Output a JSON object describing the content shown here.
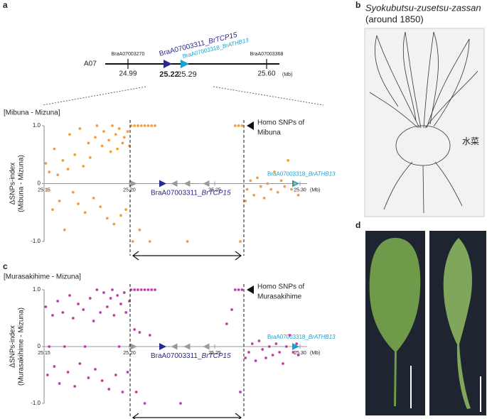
{
  "panels": {
    "a": "a",
    "b": "b",
    "c": "c",
    "d": "d"
  },
  "gene_map": {
    "chromosome": "A07",
    "unit": "(Mb)",
    "markers": [
      {
        "name": "BraA07003270",
        "position": "24.99"
      },
      {
        "name": "BraA07003368",
        "position": "25.60"
      }
    ],
    "genes": [
      {
        "id": "BraA07003311_",
        "name": "BrTCP15",
        "position": "25.22"
      },
      {
        "id": "BraA07003318_",
        "name": "BrATHB13",
        "position": "25.29"
      }
    ]
  },
  "illustration": {
    "title": "Syokubutsu-zusetsu-zassan",
    "subtitle": "(around 1850)"
  },
  "chart_data": [
    {
      "type": "scatter",
      "title": "[Mibuna - Mizuna]",
      "y_label": [
        "ΔSNPs-index",
        "(Mibuna - Mizuna)"
      ],
      "annotation": [
        "Homo SNPs of",
        "Mibuna"
      ],
      "x_unit": "(Mb)",
      "genes": [
        {
          "id": "BraA07003311_",
          "name": "BrTCP15"
        },
        {
          "id": "BraA07003318_",
          "name": "BrATHB13"
        }
      ],
      "color": "#f0a040",
      "xlim": [
        25.15,
        25.3
      ],
      "ylim": [
        -1,
        1
      ],
      "xticks": [
        25.15,
        {
          "value": 25.2,
          "label": "25.20"
        },
        25.25,
        {
          "value": 25.3,
          "label": "25.30"
        }
      ],
      "yticks": [
        {
          "value": 1,
          "label": "1.0"
        },
        0,
        {
          "value": -1,
          "label": "-1.0"
        }
      ],
      "x": [
        25.151,
        25.152,
        25.153,
        25.155,
        25.156,
        25.158,
        25.159,
        25.161,
        25.162,
        25.164,
        25.165,
        25.167,
        25.168,
        25.17,
        25.171,
        25.173,
        25.174,
        25.176,
        25.177,
        25.179,
        25.18,
        25.181,
        25.183,
        25.184,
        25.185,
        25.187,
        25.188,
        25.189,
        25.19,
        25.191,
        25.192,
        25.193,
        25.194,
        25.195,
        25.196,
        25.197,
        25.198,
        25.199,
        25.2,
        25.201,
        25.203,
        25.205,
        25.207,
        25.209,
        25.211,
        25.213,
        25.215,
        25.202,
        25.206,
        25.212,
        25.234,
        25.262,
        25.264,
        25.266,
        25.265,
        25.268,
        25.269,
        25.271,
        25.273,
        25.275,
        25.277,
        25.279,
        25.281,
        25.283,
        25.285,
        25.287,
        25.289,
        25.291,
        25.293,
        25.295,
        25.297,
        25.299
      ],
      "values": [
        0.35,
        -0.1,
        0.2,
        -0.45,
        0.6,
        0.15,
        -0.3,
        0.4,
        -0.8,
        0.25,
        0.85,
        -0.15,
        0.5,
        -0.35,
        0.95,
        0.3,
        -0.5,
        0.7,
        0.45,
        -0.25,
        0.8,
        1,
        -0.4,
        0.65,
        0.9,
        -0.6,
        0.75,
        0.55,
        1,
        -0.7,
        0.85,
        0.6,
        0.95,
        -0.55,
        0.7,
        0.8,
        -0.45,
        0.9,
        0.65,
        1,
        1,
        1,
        1,
        1,
        1,
        1,
        1,
        -1,
        -0.8,
        -1,
        -1,
        1,
        1,
        1,
        -1,
        -0.3,
        -0.1,
        0.05,
        -0.2,
        0.1,
        -0.05,
        -0.25,
        0,
        -0.1,
        0.2,
        -0.15,
        0.05,
        -0.05,
        0.4,
        -0.1,
        0,
        -0.2
      ]
    },
    {
      "type": "scatter",
      "title": "[Murasakihime - Mizuna]",
      "y_label": [
        "ΔSNPs-index",
        "(Murasakihime - Mizuna)"
      ],
      "annotation": [
        "Homo SNPs of",
        "Murasakihime"
      ],
      "x_unit": "(Mb)",
      "genes": [
        {
          "id": "BraA07003311_",
          "name": "BrTCP15"
        },
        {
          "id": "BraA07003318_",
          "name": "BrATHB13"
        }
      ],
      "color": "#c040a8",
      "xlim": [
        25.15,
        25.3
      ],
      "ylim": [
        -1,
        1
      ],
      "xticks": [
        25.15,
        {
          "value": 25.2,
          "label": "25.20"
        },
        25.25,
        {
          "value": 25.3,
          "label": "25.30"
        }
      ],
      "yticks": [
        {
          "value": 1,
          "label": "1.0"
        },
        0,
        {
          "value": -1,
          "label": "-1.0"
        }
      ],
      "x": [
        25.151,
        25.152,
        25.153,
        25.155,
        25.156,
        25.158,
        25.159,
        25.161,
        25.162,
        25.164,
        25.165,
        25.167,
        25.168,
        25.17,
        25.171,
        25.173,
        25.174,
        25.176,
        25.177,
        25.179,
        25.18,
        25.181,
        25.183,
        25.184,
        25.185,
        25.187,
        25.188,
        25.189,
        25.19,
        25.191,
        25.192,
        25.193,
        25.194,
        25.195,
        25.196,
        25.197,
        25.198,
        25.199,
        25.2,
        25.201,
        25.203,
        25.205,
        25.207,
        25.209,
        25.211,
        25.213,
        25.215,
        25.203,
        25.206,
        25.204,
        25.209,
        25.212,
        25.23,
        25.257,
        25.26,
        25.262,
        25.264,
        25.266,
        25.265,
        25.268,
        25.27,
        25.272,
        25.274,
        25.276,
        25.278,
        25.28,
        25.282,
        25.284,
        25.286,
        25.288,
        25.29,
        25.292,
        25.294,
        25.296,
        25.298,
        25.299
      ],
      "values": [
        0.7,
        -0.5,
        0,
        0.55,
        -0.35,
        0.8,
        -0.65,
        0.6,
        0,
        -0.45,
        0.9,
        0.5,
        -0.7,
        0.75,
        -0.3,
        0.65,
        0,
        -0.55,
        0.85,
        0.45,
        -0.4,
        1,
        0.6,
        -0.6,
        0.95,
        0.7,
        -0.75,
        0.85,
        1,
        0.55,
        -0.5,
        0.9,
        0,
        0.75,
        -0.8,
        0.95,
        0.6,
        -0.45,
        0.8,
        1,
        1,
        1,
        1,
        1,
        1,
        1,
        1,
        0.3,
        0.25,
        -0.8,
        -1,
        0.2,
        -1,
        0.4,
        0.65,
        1,
        1,
        1,
        -0.8,
        -0.2,
        -0.1,
        0.05,
        -0.25,
        0.1,
        -0.05,
        -0.2,
        0,
        -0.15,
        0.05,
        -0.1,
        -0.3,
        0,
        0.2,
        -0.1,
        0.05,
        -0.15
      ]
    }
  ]
}
